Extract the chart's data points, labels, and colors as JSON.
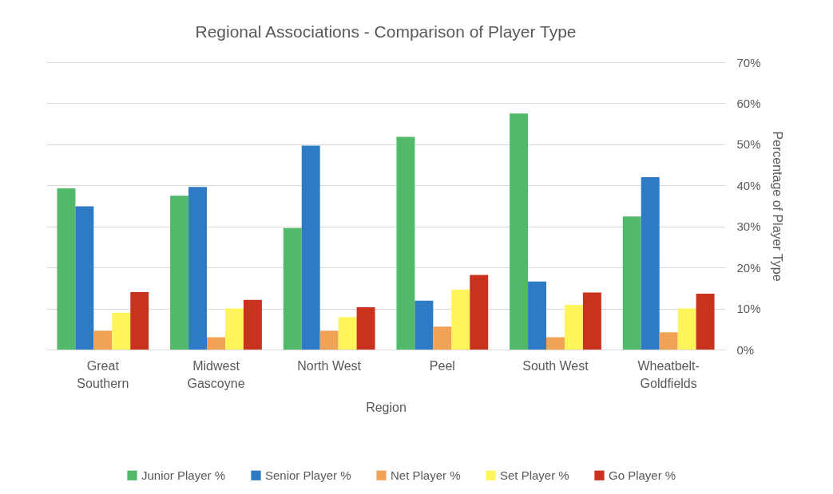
{
  "chart_data": {
    "type": "bar",
    "title": "Regional Associations - Comparison of Player Type",
    "xlabel": "Region",
    "ylabel": "Percentage of Player Type",
    "categories": [
      "Great Southern",
      "Midwest Gascoyne",
      "North West",
      "Peel",
      "South West",
      "Wheatbelt-Goldfields"
    ],
    "series": [
      {
        "name": "Junior Player %",
        "color": "#52b96a",
        "values": [
          39.3,
          37.5,
          29.6,
          51.8,
          57.5,
          32.4
        ]
      },
      {
        "name": "Senior Player %",
        "color": "#2f7ac4",
        "values": [
          34.9,
          39.6,
          49.7,
          11.9,
          16.6,
          42.0
        ]
      },
      {
        "name": "Net Player %",
        "color": "#f2a257",
        "values": [
          4.6,
          3.0,
          4.6,
          5.6,
          3.0,
          4.2
        ]
      },
      {
        "name": "Set Player %",
        "color": "#fdf55a",
        "values": [
          9.0,
          10.0,
          7.9,
          14.6,
          10.9,
          10.0
        ]
      },
      {
        "name": "Go Player %",
        "color": "#c9321f",
        "values": [
          14.0,
          12.1,
          10.3,
          18.2,
          13.9,
          13.6
        ]
      }
    ],
    "ylim": [
      0,
      70
    ],
    "yticks": [
      {
        "value": 0,
        "label": "0%"
      },
      {
        "value": 10,
        "label": "10%"
      },
      {
        "value": 20,
        "label": "20%"
      },
      {
        "value": 30,
        "label": "30%"
      },
      {
        "value": 40,
        "label": "40%"
      },
      {
        "value": 50,
        "label": "50%"
      },
      {
        "value": 60,
        "label": "60%"
      },
      {
        "value": 70,
        "label": "70%"
      }
    ],
    "grid": "y",
    "legend": "bottom"
  }
}
